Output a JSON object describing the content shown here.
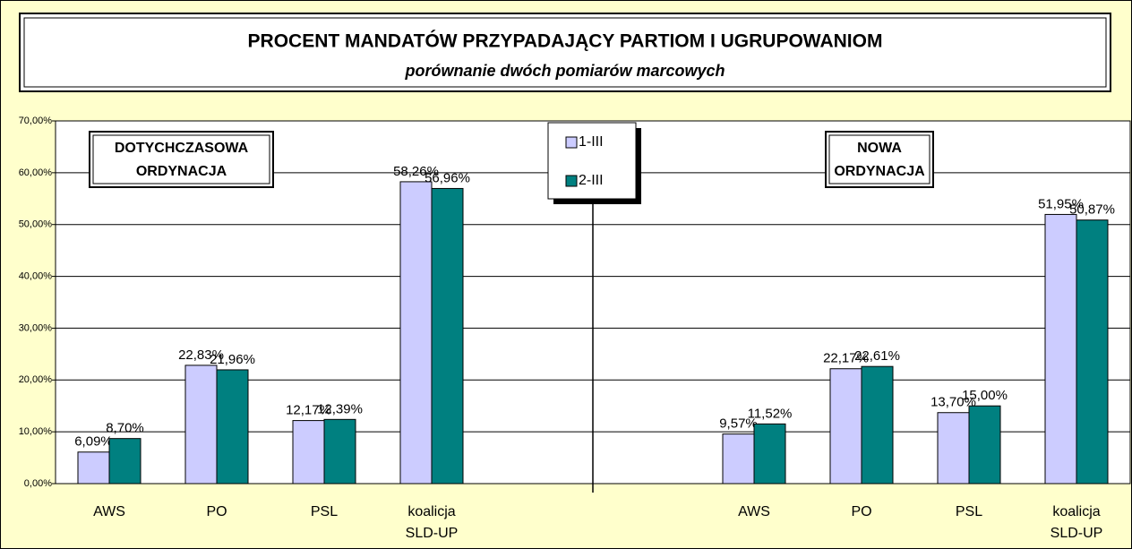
{
  "chart_data": {
    "type": "bar",
    "title": "PROCENT MANDATÓW PRZYPADAJĄCY PARTIOM I UGRUPOWANIOM",
    "subtitle": "porównanie dwóch pomiarów marcowych",
    "annotations": [
      "DOTYCHCZASOWA ORDYNACJA",
      "NOWA ORDYNACJA"
    ],
    "categories": [
      "AWS",
      "PO",
      "PSL",
      "koalicja SLD-UP",
      null,
      null,
      "AWS",
      "PO",
      "PSL",
      "koalicja SLD-UP"
    ],
    "series": [
      {
        "name": "1-III",
        "color": "#ccccff",
        "values": [
          6.09,
          22.83,
          12.17,
          58.26,
          null,
          null,
          9.57,
          22.17,
          13.7,
          51.95
        ],
        "value_labels": [
          "6,09%",
          "22,83%",
          "12,17%",
          "58,26%",
          null,
          null,
          "9,57%",
          "22,17%",
          "13,70%",
          "51,95%"
        ]
      },
      {
        "name": "2-III",
        "color": "#008080",
        "values": [
          8.7,
          21.96,
          12.39,
          56.96,
          null,
          null,
          11.52,
          22.61,
          15.0,
          50.87
        ],
        "value_labels": [
          "8,70%",
          "21,96%",
          "12,39%",
          "56,96%",
          null,
          null,
          "11,52%",
          "22,61%",
          "15,00%",
          "50,87%"
        ]
      }
    ],
    "ylim": [
      0,
      70
    ],
    "yticks": [
      {
        "value": 0,
        "label": "0,00%"
      },
      {
        "value": 10,
        "label": "10,00%"
      },
      {
        "value": 20,
        "label": "20,00%"
      },
      {
        "value": 30,
        "label": "30,00%"
      },
      {
        "value": 40,
        "label": "40,00%"
      },
      {
        "value": 50,
        "label": "50,00%"
      },
      {
        "value": 60,
        "label": "60,00%"
      },
      {
        "value": 70,
        "label": "70,00%"
      }
    ],
    "grid": true,
    "legend": "top"
  }
}
